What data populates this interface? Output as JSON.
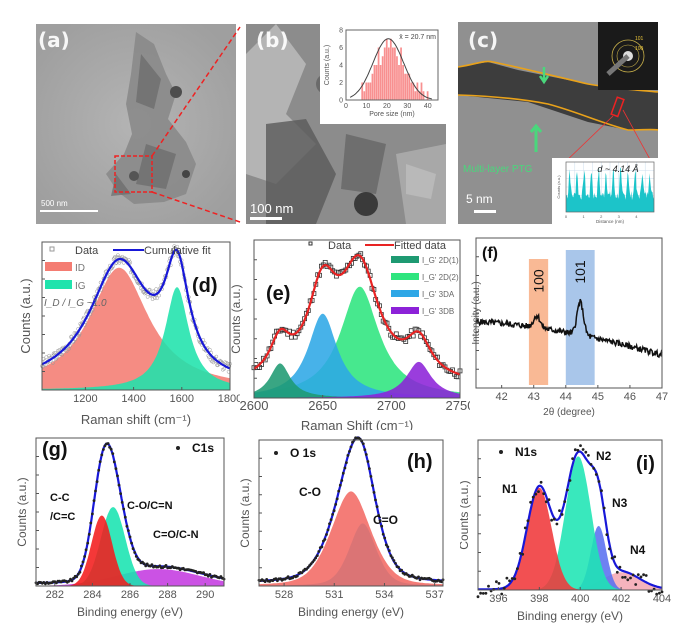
{
  "figure": {
    "panels": {
      "a": {
        "label": "(a)",
        "scale_bar": "500 nm",
        "type": "TEM image"
      },
      "b": {
        "label": "(b)",
        "scale_bar": "100 nm",
        "type": "TEM image with inset histogram"
      },
      "c": {
        "label": "(c)",
        "scale_bar": "5 nm",
        "annotation": "Multi-layer PTG",
        "inset_label": "d ~ 4.14 Å",
        "saed_rings": [
          "101",
          "100"
        ],
        "type": "HRTEM image with SAED and line profile insets"
      }
    }
  },
  "chart_data": [
    {
      "id": "b-inset",
      "type": "bar",
      "title": "",
      "xlabel": "Pore size (nm)",
      "ylabel": "Counts (a.u.)",
      "xlim": [
        0,
        45
      ],
      "ylim": [
        0,
        8
      ],
      "xticks": [
        "0",
        "10",
        "20",
        "30",
        "40"
      ],
      "yticks": [
        "0",
        "2",
        "4",
        "6",
        "8"
      ],
      "annotation": "x̄ = 20.7 nm",
      "bins": [
        8,
        9,
        10,
        11,
        12,
        13,
        14,
        15,
        16,
        17,
        18,
        19,
        20,
        21,
        22,
        23,
        24,
        25,
        26,
        27,
        28,
        29,
        30,
        31,
        32,
        33,
        34,
        35,
        36,
        37,
        38,
        39,
        40
      ],
      "values": [
        2,
        1,
        2,
        2,
        2,
        3,
        4,
        4,
        6,
        4,
        5,
        6,
        7,
        6,
        7,
        6,
        6,
        5,
        4,
        6,
        4,
        3,
        3,
        3,
        2,
        2,
        1,
        2,
        1,
        2,
        1,
        0,
        1
      ],
      "fit": {
        "type": "gaussian",
        "mean": 20.7,
        "sigma": 7.5,
        "peak": 7
      }
    },
    {
      "id": "c-inset",
      "type": "area",
      "xlabel": "Distance (nm)",
      "ylabel": "Counts (a.u.)",
      "xticks": [
        "0",
        "1",
        "2",
        "3",
        "4"
      ],
      "xlim": [
        0,
        5
      ],
      "annotation": "d ~ 4.14 Å",
      "color": "#1cc4c9"
    },
    {
      "id": "d",
      "label": "(d)",
      "type": "area",
      "xlabel": "Raman shift (cm⁻¹)",
      "ylabel": "Counts (a.u.)",
      "xlim": [
        1020,
        1800
      ],
      "ylim": [
        0,
        1.15
      ],
      "xticks": [
        "1200",
        "1400",
        "1600",
        "1800"
      ],
      "legend": [
        "Data",
        "Cumulative fit",
        "I_D",
        "I_G"
      ],
      "legend_position": "top-left",
      "ratio_text": "I_D / I_G ~1.0",
      "series": [
        {
          "name": "I_D",
          "center": 1340,
          "amplitude": 0.95,
          "width": 150,
          "color": "#f47c72"
        },
        {
          "name": "I_G",
          "center": 1580,
          "amplitude": 0.8,
          "width": 60,
          "color": "#1fe3ac"
        }
      ],
      "fit_color": "#1818d8"
    },
    {
      "id": "e",
      "label": "(e)",
      "type": "area",
      "xlabel": "Raman Shift (cm⁻¹)",
      "ylabel": "Counts (a.u.)",
      "xlim": [
        2600,
        2750
      ],
      "ylim": [
        0,
        1.05
      ],
      "xticks": [
        "2600",
        "2650",
        "2700",
        "2750"
      ],
      "legend": [
        "Data",
        "Fitted data",
        "I_G' 2D(1)",
        "I_G' 2D(2)",
        "I_G' 3DA",
        "I_G' 3DB"
      ],
      "legend_position": "top-right",
      "series": [
        {
          "name": "I_G' 2D(1)",
          "center": 2619,
          "amplitude": 0.23,
          "width": 9,
          "color": "#1e9a72"
        },
        {
          "name": "I_G' 2D(2)",
          "center": 2677,
          "amplitude": 0.74,
          "width": 17,
          "color": "#2ee57e"
        },
        {
          "name": "I_G' 3DA",
          "center": 2650,
          "amplitude": 0.56,
          "width": 13,
          "color": "#2ea7e6"
        },
        {
          "name": "I_G' 3DB",
          "center": 2720,
          "amplitude": 0.24,
          "width": 11,
          "color": "#8c22d8"
        }
      ],
      "fit_color": "#e82323"
    },
    {
      "id": "f",
      "label": "(f)",
      "type": "line",
      "xlabel": "2θ (degree)",
      "ylabel": "Intensity (a.u.)",
      "xlim": [
        41.2,
        47
      ],
      "ylim": [
        0,
        1
      ],
      "xticks": [
        "42",
        "43",
        "44",
        "45",
        "46",
        "47"
      ],
      "bands": [
        {
          "label": "100",
          "from": 42.85,
          "to": 43.45,
          "color": "#f9b995"
        },
        {
          "label": "101",
          "from": 44.0,
          "to": 44.9,
          "color": "#a9c6ea"
        }
      ],
      "peaks": [
        {
          "x": 43.1,
          "height": 0.52
        },
        {
          "x": 44.45,
          "height": 0.66
        }
      ],
      "baseline": {
        "start": 0.44,
        "end": 0.22
      }
    },
    {
      "id": "g",
      "label": "(g)",
      "type": "area",
      "xlabel": "Binding energy (eV)",
      "ylabel": "Counts (a.u.)",
      "xlim": [
        281,
        291
      ],
      "ylim": [
        0,
        1.05
      ],
      "xticks": [
        "282",
        "284",
        "286",
        "288",
        "290"
      ],
      "legend": [
        "C1s"
      ],
      "legend_position": "top-right",
      "annotations": [
        "C-C /C=C",
        "C-O/C=N",
        "C=O/C-N"
      ],
      "series": [
        {
          "name": "C-C /C=C",
          "center": 284.5,
          "amplitude": 0.5,
          "width": 0.55,
          "color": "#f21d1d"
        },
        {
          "name": "C-O/C=N",
          "center": 285.1,
          "amplitude": 0.56,
          "width": 0.65,
          "color": "#18e4b0"
        },
        {
          "name": "C=O/C-N",
          "center": 287.5,
          "amplitude": 0.12,
          "width": 2.2,
          "color": "#c43ae0"
        }
      ],
      "envelope_peak": {
        "x": 284.7,
        "y": 1.0
      },
      "fit_color": "#1818d8"
    },
    {
      "id": "h",
      "label": "(h)",
      "type": "area",
      "xlabel": "Binding energy (eV)",
      "ylabel": "Counts (a.u.)",
      "xlim": [
        526.5,
        537.5
      ],
      "ylim": [
        0,
        1.05
      ],
      "xticks": [
        "528",
        "531",
        "534",
        "537"
      ],
      "legend": [
        "O 1s"
      ],
      "legend_position": "top-left",
      "annotations": [
        "C-O",
        "C=O"
      ],
      "series": [
        {
          "name": "C-O",
          "center": 532.0,
          "amplitude": 0.68,
          "width": 1.25,
          "color": "#f26a64"
        },
        {
          "name": "C=O",
          "center": 532.7,
          "amplitude": 0.45,
          "width": 0.85,
          "color": "#18b4ea"
        }
      ],
      "fit_color": "#1818d8"
    },
    {
      "id": "i",
      "label": "(i)",
      "type": "area",
      "xlabel": "Binding energy (eV)",
      "ylabel": "Counts (a.u.)",
      "xlim": [
        395,
        404
      ],
      "ylim": [
        0,
        1.1
      ],
      "xticks": [
        "396",
        "398",
        "400",
        "402",
        "404"
      ],
      "legend": [
        "N1s"
      ],
      "legend_position": "top-left",
      "annotations": [
        "N1",
        "N2",
        "N3",
        "N4"
      ],
      "series": [
        {
          "name": "N1",
          "center": 398.0,
          "amplitude": 0.75,
          "width": 0.6,
          "color": "#f0383a"
        },
        {
          "name": "N2",
          "center": 399.9,
          "amplitude": 0.98,
          "width": 0.62,
          "color": "#1ee5b4"
        },
        {
          "name": "N3",
          "center": 400.9,
          "amplitude": 0.47,
          "width": 0.38,
          "color": "#5a70f0"
        },
        {
          "name": "N4",
          "center": 402.0,
          "amplitude": 0.13,
          "width": 0.9,
          "color": "#f5a9b4"
        }
      ],
      "fit_color": "#1818d8"
    }
  ]
}
